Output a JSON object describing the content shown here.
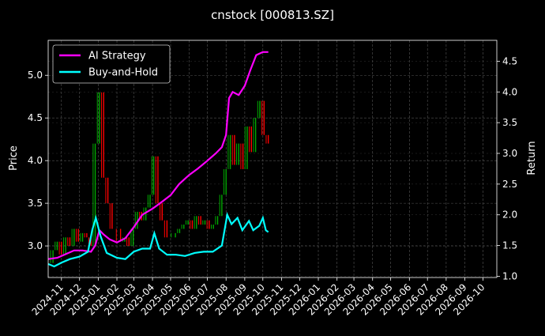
{
  "chart_data": {
    "type": "line",
    "title": "cnstock [000813.SZ]",
    "xlabel": "",
    "ylabel": "Price",
    "ylabel_right": "Return",
    "x_ticks": [
      "2024-11",
      "2024-12",
      "2025-01",
      "2025-02",
      "2025-03",
      "2025-04",
      "2025-05",
      "2025-06",
      "2025-07",
      "2025-08",
      "2025-09",
      "2025-10",
      "2025-11",
      "2025-12",
      "2026-01",
      "2026-02",
      "2026-03",
      "2026-04",
      "2026-05",
      "2026-06",
      "2026-07",
      "2026-08",
      "2026-09",
      "2026-10"
    ],
    "xlim": [
      "2024-10-10",
      "2026-10-24"
    ],
    "y_left_ticks": [
      3.0,
      3.5,
      4.0,
      4.5,
      5.0
    ],
    "y_left_lim": [
      2.63,
      5.41
    ],
    "y_right_ticks": [
      1.0,
      1.5,
      2.0,
      2.5,
      3.0,
      3.5,
      4.0,
      4.5
    ],
    "y_right_lim": [
      0.98,
      4.84
    ],
    "grid": true,
    "legend": {
      "placement": "top-left",
      "entries": [
        "AI Strategy",
        "Buy-and-Hold"
      ]
    },
    "colors": {
      "ai_strategy": "#ff00ff",
      "buy_and_hold": "#00ffff",
      "candle_up": "#00aa00",
      "candle_down": "#ff0000",
      "background": "#000000",
      "grid": "#555555"
    },
    "price_series": [
      {
        "date": "2024-10-10",
        "value": 2.8
      },
      {
        "date": "2024-10-18",
        "value": 2.95
      },
      {
        "date": "2024-10-25",
        "value": 3.05
      },
      {
        "date": "2024-11-01",
        "value": 2.9
      },
      {
        "date": "2024-11-08",
        "value": 3.1
      },
      {
        "date": "2024-11-15",
        "value": 3.0
      },
      {
        "date": "2024-11-22",
        "value": 3.2
      },
      {
        "date": "2024-11-29",
        "value": 3.05
      },
      {
        "date": "2024-12-06",
        "value": 3.15
      },
      {
        "date": "2024-12-13",
        "value": 3.1
      },
      {
        "date": "2024-12-20",
        "value": 3.0
      },
      {
        "date": "2024-12-27",
        "value": 4.2
      },
      {
        "date": "2025-01-03",
        "value": 4.8
      },
      {
        "date": "2025-01-10",
        "value": 3.8
      },
      {
        "date": "2025-01-17",
        "value": 3.5
      },
      {
        "date": "2025-01-24",
        "value": 3.2
      },
      {
        "date": "2025-02-07",
        "value": 3.05
      },
      {
        "date": "2025-02-14",
        "value": 3.1
      },
      {
        "date": "2025-02-21",
        "value": 3.0
      },
      {
        "date": "2025-02-28",
        "value": 3.2
      },
      {
        "date": "2025-03-07",
        "value": 3.4
      },
      {
        "date": "2025-03-14",
        "value": 3.3
      },
      {
        "date": "2025-03-21",
        "value": 3.45
      },
      {
        "date": "2025-03-28",
        "value": 3.6
      },
      {
        "date": "2025-04-03",
        "value": 4.05
      },
      {
        "date": "2025-04-10",
        "value": 3.5
      },
      {
        "date": "2025-04-17",
        "value": 3.3
      },
      {
        "date": "2025-04-25",
        "value": 3.1
      },
      {
        "date": "2025-05-09",
        "value": 3.15
      },
      {
        "date": "2025-05-16",
        "value": 3.2
      },
      {
        "date": "2025-05-23",
        "value": 3.25
      },
      {
        "date": "2025-05-30",
        "value": 3.3
      },
      {
        "date": "2025-06-06",
        "value": 3.2
      },
      {
        "date": "2025-06-13",
        "value": 3.35
      },
      {
        "date": "2025-06-20",
        "value": 3.25
      },
      {
        "date": "2025-06-27",
        "value": 3.3
      },
      {
        "date": "2025-07-04",
        "value": 3.2
      },
      {
        "date": "2025-07-11",
        "value": 3.25
      },
      {
        "date": "2025-07-18",
        "value": 3.35
      },
      {
        "date": "2025-07-25",
        "value": 3.6
      },
      {
        "date": "2025-08-01",
        "value": 3.9
      },
      {
        "date": "2025-08-08",
        "value": 4.3
      },
      {
        "date": "2025-08-15",
        "value": 3.95
      },
      {
        "date": "2025-08-22",
        "value": 4.2
      },
      {
        "date": "2025-08-29",
        "value": 3.9
      },
      {
        "date": "2025-09-05",
        "value": 4.4
      },
      {
        "date": "2025-09-12",
        "value": 4.1
      },
      {
        "date": "2025-09-19",
        "value": 4.5
      },
      {
        "date": "2025-09-26",
        "value": 4.7
      },
      {
        "date": "2025-10-03",
        "value": 4.3
      },
      {
        "date": "2025-10-10",
        "value": 4.2
      }
    ],
    "series": [
      {
        "name": "AI Strategy",
        "axis": "right",
        "points": [
          {
            "date": "2024-10-10",
            "value": 1.28
          },
          {
            "date": "2024-10-25",
            "value": 1.3
          },
          {
            "date": "2024-11-08",
            "value": 1.36
          },
          {
            "date": "2024-11-22",
            "value": 1.42
          },
          {
            "date": "2024-12-06",
            "value": 1.42
          },
          {
            "date": "2024-12-20",
            "value": 1.4
          },
          {
            "date": "2024-12-27",
            "value": 1.5
          },
          {
            "date": "2025-01-03",
            "value": 1.75
          },
          {
            "date": "2025-01-10",
            "value": 1.68
          },
          {
            "date": "2025-01-20",
            "value": 1.6
          },
          {
            "date": "2025-02-01",
            "value": 1.55
          },
          {
            "date": "2025-02-15",
            "value": 1.62
          },
          {
            "date": "2025-03-01",
            "value": 1.8
          },
          {
            "date": "2025-03-15",
            "value": 2.0
          },
          {
            "date": "2025-04-01",
            "value": 2.1
          },
          {
            "date": "2025-04-15",
            "value": 2.2
          },
          {
            "date": "2025-05-01",
            "value": 2.32
          },
          {
            "date": "2025-05-15",
            "value": 2.5
          },
          {
            "date": "2025-06-01",
            "value": 2.65
          },
          {
            "date": "2025-06-15",
            "value": 2.75
          },
          {
            "date": "2025-07-01",
            "value": 2.88
          },
          {
            "date": "2025-07-15",
            "value": 3.0
          },
          {
            "date": "2025-07-25",
            "value": 3.1
          },
          {
            "date": "2025-08-01",
            "value": 3.3
          },
          {
            "date": "2025-08-06",
            "value": 3.9
          },
          {
            "date": "2025-08-12",
            "value": 4.0
          },
          {
            "date": "2025-08-22",
            "value": 3.95
          },
          {
            "date": "2025-09-01",
            "value": 4.1
          },
          {
            "date": "2025-09-10",
            "value": 4.35
          },
          {
            "date": "2025-09-20",
            "value": 4.6
          },
          {
            "date": "2025-10-01",
            "value": 4.65
          },
          {
            "date": "2025-10-10",
            "value": 4.65
          }
        ]
      },
      {
        "name": "Buy-and-Hold",
        "axis": "right",
        "points": [
          {
            "date": "2024-10-10",
            "value": 1.2
          },
          {
            "date": "2024-10-20",
            "value": 1.16
          },
          {
            "date": "2024-11-01",
            "value": 1.22
          },
          {
            "date": "2024-11-15",
            "value": 1.28
          },
          {
            "date": "2024-12-01",
            "value": 1.32
          },
          {
            "date": "2024-12-15",
            "value": 1.4
          },
          {
            "date": "2024-12-22",
            "value": 1.75
          },
          {
            "date": "2024-12-28",
            "value": 1.95
          },
          {
            "date": "2025-01-05",
            "value": 1.65
          },
          {
            "date": "2025-01-15",
            "value": 1.38
          },
          {
            "date": "2025-02-01",
            "value": 1.3
          },
          {
            "date": "2025-02-15",
            "value": 1.28
          },
          {
            "date": "2025-03-01",
            "value": 1.4
          },
          {
            "date": "2025-03-15",
            "value": 1.45
          },
          {
            "date": "2025-03-28",
            "value": 1.45
          },
          {
            "date": "2025-04-04",
            "value": 1.7
          },
          {
            "date": "2025-04-12",
            "value": 1.45
          },
          {
            "date": "2025-04-25",
            "value": 1.35
          },
          {
            "date": "2025-05-10",
            "value": 1.35
          },
          {
            "date": "2025-05-25",
            "value": 1.33
          },
          {
            "date": "2025-06-10",
            "value": 1.38
          },
          {
            "date": "2025-06-25",
            "value": 1.4
          },
          {
            "date": "2025-07-10",
            "value": 1.4
          },
          {
            "date": "2025-07-25",
            "value": 1.5
          },
          {
            "date": "2025-08-03",
            "value": 2.0
          },
          {
            "date": "2025-08-10",
            "value": 1.85
          },
          {
            "date": "2025-08-20",
            "value": 1.95
          },
          {
            "date": "2025-08-28",
            "value": 1.75
          },
          {
            "date": "2025-09-08",
            "value": 1.9
          },
          {
            "date": "2025-09-15",
            "value": 1.75
          },
          {
            "date": "2025-09-25",
            "value": 1.82
          },
          {
            "date": "2025-10-01",
            "value": 1.95
          },
          {
            "date": "2025-10-06",
            "value": 1.75
          },
          {
            "date": "2025-10-10",
            "value": 1.72
          }
        ]
      }
    ]
  }
}
